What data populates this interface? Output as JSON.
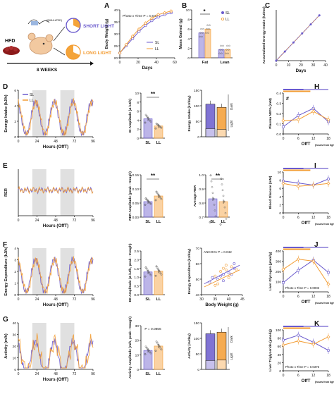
{
  "colors": {
    "sl": "#6a5acd",
    "ll": "#f39c32",
    "dark": "#d3d3d3"
  },
  "schematic": {
    "diet": "HFD",
    "short_light": "SHORT LIGHT",
    "long_light": "LONG LIGHT",
    "duration": "8 WEEKS",
    "wheel_label": "(SIMULATED)"
  },
  "panel_letters": [
    "A",
    "B",
    "C",
    "D",
    "E",
    "F",
    "G",
    "H",
    "I",
    "J",
    "K"
  ],
  "chart_data": [
    {
      "id": "A",
      "type": "line",
      "title": "Photo x Time P = 0.0246",
      "xlabel": "Days",
      "ylabel": "Body Weight (g)",
      "xlim": [
        0,
        60
      ],
      "ylim": [
        20,
        40
      ],
      "xticks": [
        "0",
        "20",
        "40",
        "60"
      ],
      "yticks": [
        "20",
        "25",
        "30",
        "35",
        "40"
      ],
      "x": [
        0,
        7,
        14,
        21,
        28,
        35,
        42,
        49,
        56
      ],
      "series": [
        {
          "name": "SL",
          "values": [
            22,
            25,
            28,
            31,
            33.5,
            35.5,
            37,
            38,
            38.8
          ]
        },
        {
          "name": "LL",
          "values": [
            22,
            25.5,
            29,
            32,
            34.5,
            36.5,
            38,
            38.8,
            39.5
          ]
        }
      ]
    },
    {
      "id": "B",
      "type": "bar",
      "title": "*",
      "xlabel": "",
      "ylabel": "Mass Gained (g)",
      "ylim": [
        0,
        10
      ],
      "yticks": [
        "0",
        "2",
        "4",
        "6",
        "8",
        "10"
      ],
      "categories": [
        "Fat",
        "Lean"
      ],
      "series": [
        {
          "name": "SL",
          "values": [
            5.2,
            1.7
          ]
        },
        {
          "name": "LL",
          "values": [
            6.0,
            1.7
          ]
        }
      ]
    },
    {
      "id": "C",
      "type": "line",
      "xlabel": "Days",
      "ylabel": "Accumulated Energy Intake (kJ/mo)",
      "xlim": [
        0,
        40
      ],
      "xticks": [
        "0",
        "10",
        "20",
        "30",
        "40"
      ],
      "x": [
        0,
        7,
        14,
        21,
        28,
        35
      ],
      "series": [
        {
          "name": "SL",
          "values": [
            0,
            1,
            2,
            3,
            4,
            5
          ]
        },
        {
          "name": "LL",
          "values": [
            0,
            1,
            2,
            3,
            4,
            5
          ]
        }
      ]
    },
    {
      "id": "D",
      "type": "line",
      "xlabel": "Hours (OffT)",
      "ylabel": "Energy Intake (kJ/h)",
      "xticks": [
        "0",
        "24",
        "48",
        "72",
        "96"
      ],
      "yticks": [
        "0",
        "2",
        "4",
        "6"
      ]
    },
    {
      "id": "D2",
      "type": "bar",
      "title": "**",
      "ylabel": "EI Amplitude (Δ kJ/h)",
      "categories": [
        "SL",
        "LL"
      ],
      "values": [
        4.3,
        2.7
      ],
      "ylim": [
        0,
        10
      ],
      "yticks": [
        "0",
        "2",
        "4",
        "6",
        "8",
        "10"
      ]
    },
    {
      "id": "D3",
      "type": "bar",
      "ylabel": "Energy Intake (kJ/day)",
      "categories": [
        "SL",
        "LL"
      ],
      "values": [
        105,
        95
      ],
      "ylim": [
        0,
        150
      ],
      "yticks": [
        "0",
        "50",
        "100",
        "150"
      ],
      "annotations": [
        "Dark",
        "Light"
      ]
    },
    {
      "id": "E",
      "type": "line",
      "xlabel": "Hours (OffT)",
      "ylabel": "RER",
      "xticks": [
        "0",
        "24",
        "48",
        "72",
        "96"
      ]
    },
    {
      "id": "E2",
      "type": "bar",
      "title": "**",
      "ylabel": "RER Amplitude (peak - trough)",
      "categories": [
        "SL",
        "LL"
      ],
      "values": [
        0.055,
        0.075
      ],
      "ylim": [
        0,
        0.15
      ],
      "yticks": [
        "0.00",
        "0.05",
        "0.10",
        "0.15"
      ]
    },
    {
      "id": "E3",
      "type": "bar",
      "title": "**",
      "ylabel": "Average RER",
      "categories": [
        "SL",
        "LL"
      ],
      "values": [
        0.83,
        0.81
      ],
      "ylim": [
        0.7,
        1.0
      ],
      "yticks": [
        "0.7",
        "0.8",
        "0.9",
        "1.0"
      ]
    },
    {
      "id": "F",
      "type": "line",
      "xlabel": "Hours (OffT)",
      "ylabel": "Energy Expenditure (kJ/h)",
      "xticks": [
        "0",
        "24",
        "48",
        "72",
        "96"
      ],
      "yticks": [
        "0",
        "1",
        "2",
        "3",
        "4"
      ]
    },
    {
      "id": "F2",
      "type": "bar",
      "ylabel": "EE Amplitude (Δ kJ/h, peak - trough)",
      "categories": [
        "SL",
        "LL"
      ],
      "values": [
        1.3,
        1.35
      ],
      "ylim": [
        0,
        2.5
      ],
      "yticks": [
        "0.0",
        "0.5",
        "1.0",
        "1.5",
        "2.0",
        "2.5"
      ]
    },
    {
      "id": "F3",
      "type": "scatter",
      "title": "ANCOVA P = 0.042",
      "xlabel": "Body Weight (g)",
      "ylabel": "Energy Expenditure (kJ/day)",
      "xlim": [
        30,
        45
      ],
      "ylim": [
        40,
        70
      ],
      "xticks": [
        "30",
        "35",
        "40",
        "45"
      ],
      "yticks": [
        "40",
        "50",
        "60",
        "70"
      ]
    },
    {
      "id": "G",
      "type": "line",
      "xlabel": "Hours (OffT)",
      "ylabel": "Activity (m/h)",
      "xticks": [
        "0",
        "24",
        "48",
        "72",
        "96"
      ],
      "yticks": [
        "0",
        "10",
        "20",
        "30",
        "40"
      ]
    },
    {
      "id": "G2",
      "type": "bar",
      "title": "P = 0.0856",
      "ylabel": "Activity Amplitude (m/h, peak - trough)",
      "categories": [
        "SL",
        "LL"
      ],
      "values": [
        13,
        16
      ],
      "ylim": [
        0,
        30
      ],
      "yticks": [
        "0",
        "10",
        "20",
        "30"
      ]
    },
    {
      "id": "G3",
      "type": "bar",
      "ylabel": "Activity (m/day)",
      "categories": [
        "SL",
        "LL"
      ],
      "values": [
        115,
        120
      ],
      "ylim": [
        0,
        150
      ],
      "yticks": [
        "0",
        "50",
        "100",
        "150"
      ],
      "annotations": [
        "Dark",
        "Light"
      ]
    },
    {
      "id": "H",
      "type": "line",
      "title": "#",
      "xlabel": "OffT",
      "xlabel_sub": "(hours from lights off)",
      "ylabel": "Plasma NEFA (mM)",
      "xticks": [
        "0",
        "6",
        "12",
        "18"
      ],
      "yticks": [
        "0.0",
        "0.1",
        "0.2",
        "0.3",
        "0.4"
      ],
      "x": [
        0,
        6,
        12,
        18
      ],
      "series": [
        {
          "name": "SL",
          "values": [
            0.07,
            0.18,
            0.25,
            0.12
          ]
        },
        {
          "name": "LL",
          "values": [
            0.13,
            0.14,
            0.22,
            0.14
          ]
        }
      ]
    },
    {
      "id": "I",
      "type": "line",
      "xlabel": "OffT",
      "xlabel_sub": "(hours from lights off)",
      "ylabel": "Blood Glucose (mM)",
      "xticks": [
        "0",
        "6",
        "12",
        "18"
      ],
      "yticks": [
        "0",
        "2",
        "4",
        "6",
        "8",
        "10"
      ],
      "x": [
        0,
        6,
        12,
        18
      ],
      "series": [
        {
          "name": "SL",
          "values": [
            7.8,
            7.3,
            6.8,
            8.3
          ]
        },
        {
          "name": "LL",
          "values": [
            7.2,
            6.5,
            6.8,
            7.2
          ]
        }
      ]
    },
    {
      "id": "J",
      "type": "line",
      "title": "Photo x Time P = 0.0003",
      "xlabel": "OffT",
      "xlabel_sub": "(hours from lights off)",
      "ylabel": "Liver Glycogen (µmol/g)",
      "xticks": [
        "0",
        "6",
        "12",
        "18"
      ],
      "yticks": [
        "0",
        "100",
        "200",
        "300",
        "400"
      ],
      "x": [
        0,
        6,
        12,
        18
      ],
      "series": [
        {
          "name": "SL",
          "values": [
            90,
            210,
            310,
            190
          ]
        },
        {
          "name": "LL",
          "values": [
            220,
            320,
            300,
            75
          ]
        }
      ]
    },
    {
      "id": "K",
      "type": "line",
      "title": "Photo x Time P = 0.0375",
      "xlabel": "OffT",
      "xlabel_sub": "(hours from lights off)",
      "ylabel": "Liver Triglyceride (µmol/g)",
      "xticks": [
        "0",
        "6",
        "12",
        "18"
      ],
      "yticks": [
        "0",
        "20",
        "40",
        "60",
        "80",
        "100"
      ],
      "x": [
        0,
        6,
        12,
        18
      ],
      "series": [
        {
          "name": "SL",
          "values": [
            75,
            87,
            70,
            50
          ]
        },
        {
          "name": "LL",
          "values": [
            63,
            73,
            65,
            83
          ]
        }
      ]
    }
  ]
}
